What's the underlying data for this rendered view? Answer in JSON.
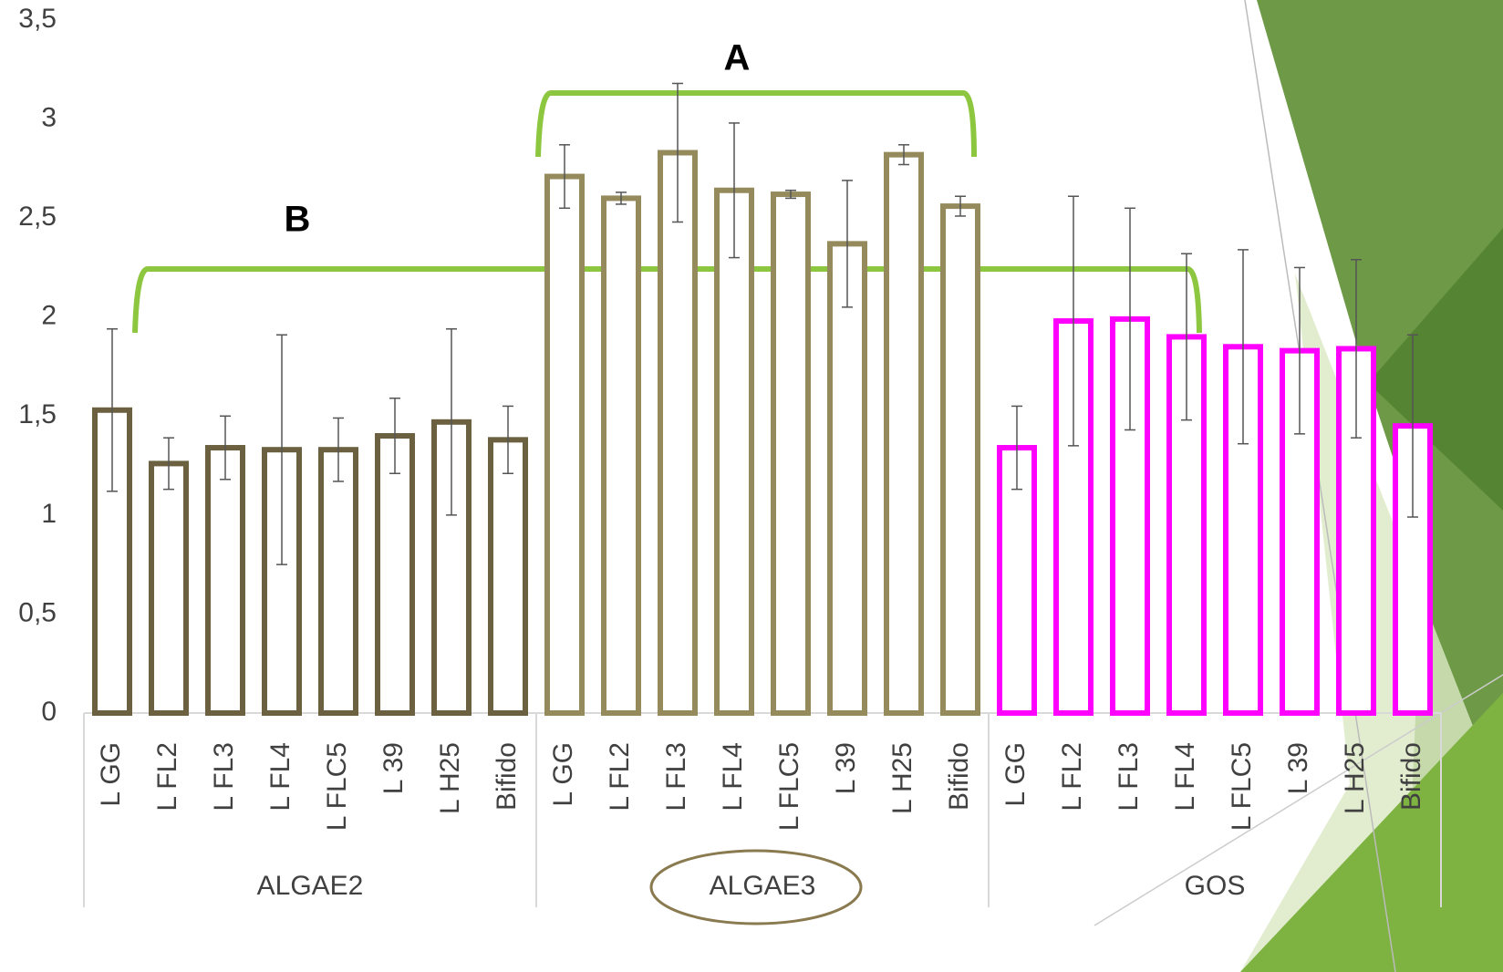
{
  "chart_data": {
    "type": "bar",
    "ylim": [
      0,
      3.5
    ],
    "yticks": [
      0,
      {
        "value": 0.5,
        "label": "0,5"
      },
      1,
      {
        "value": 1.5,
        "label": "1,5"
      },
      2,
      {
        "value": 2.5,
        "label": "2,5"
      },
      3,
      {
        "value": 3.5,
        "label": "3,5"
      }
    ],
    "groups": [
      {
        "name": "ALGAE2",
        "color": "#6b6040",
        "categories": [
          "L GG",
          "L FL2",
          "L FL3",
          "L FL4",
          "L FLC5",
          "L 39",
          "L H25",
          "Bifido"
        ],
        "values": [
          1.53,
          1.26,
          1.34,
          1.33,
          1.33,
          1.4,
          1.47,
          1.38
        ],
        "errors": [
          0.41,
          0.13,
          0.16,
          0.58,
          0.16,
          0.19,
          0.47,
          0.17
        ]
      },
      {
        "name": "ALGAE3",
        "color": "#948a5c",
        "categories": [
          "L GG",
          "L FL2",
          "L FL3",
          "L FL4",
          "L FLC5",
          "L 39",
          "L H25",
          "Bifido"
        ],
        "values": [
          2.71,
          2.6,
          2.83,
          2.64,
          2.62,
          2.37,
          2.82,
          2.56
        ],
        "errors": [
          0.16,
          0.03,
          0.35,
          0.34,
          0.02,
          0.32,
          0.05,
          0.05
        ]
      },
      {
        "name": "GOS",
        "color": "#ff00ff",
        "categories": [
          "L GG",
          "L FL2",
          "L FL3",
          "L FL4",
          "L FLC5",
          "L 39",
          "L H25",
          "Bifido"
        ],
        "values": [
          1.34,
          1.98,
          1.99,
          1.9,
          1.85,
          1.83,
          1.84,
          1.45
        ],
        "errors": [
          0.21,
          0.63,
          0.56,
          0.42,
          0.49,
          0.42,
          0.45,
          0.46
        ]
      }
    ],
    "annotations": [
      "A",
      "B"
    ]
  }
}
